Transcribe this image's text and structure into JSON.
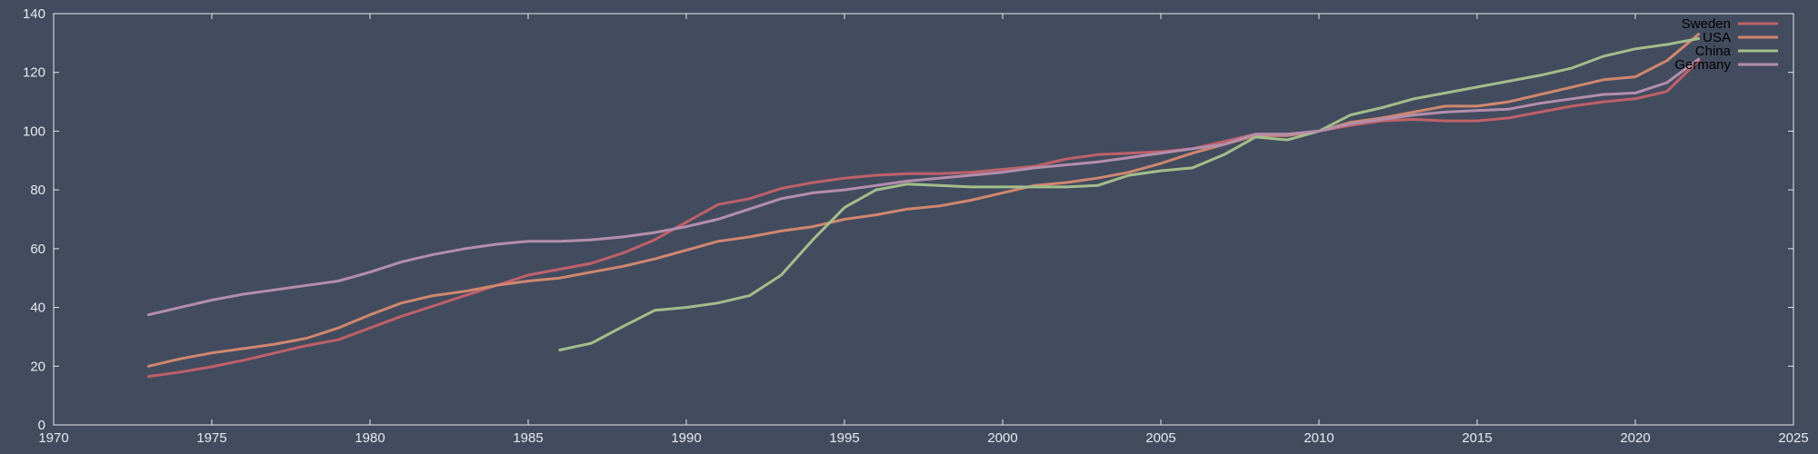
{
  "chart_data": {
    "type": "line",
    "title": "",
    "xlabel": "",
    "ylabel": "",
    "xlim": [
      1970,
      2025
    ],
    "ylim": [
      0,
      140
    ],
    "xticks": [
      1970,
      1975,
      1980,
      1985,
      1990,
      1995,
      2000,
      2005,
      2010,
      2015,
      2020,
      2025
    ],
    "yticks": [
      0,
      20,
      40,
      60,
      80,
      100,
      120,
      140
    ],
    "grid": false,
    "legend": "top-right",
    "series": [
      {
        "name": "Sweden",
        "color": "#bf616a",
        "x": [
          1973,
          1974,
          1975,
          1976,
          1977,
          1978,
          1979,
          1980,
          1981,
          1982,
          1983,
          1984,
          1985,
          1986,
          1987,
          1988,
          1989,
          1990,
          1991,
          1992,
          1993,
          1994,
          1995,
          1996,
          1997,
          1998,
          1999,
          2000,
          2001,
          2002,
          2003,
          2004,
          2005,
          2006,
          2007,
          2008,
          2009,
          2010,
          2011,
          2012,
          2013,
          2014,
          2015,
          2016,
          2017,
          2018,
          2019,
          2020,
          2021,
          2022
        ],
        "y": [
          16.5,
          18,
          19.8,
          22,
          24.5,
          27,
          29,
          33,
          37,
          40.5,
          44,
          47.5,
          51,
          53,
          55,
          58.5,
          63,
          69,
          75,
          77,
          80.5,
          82.5,
          84,
          85,
          85.5,
          85.5,
          86,
          87,
          88,
          90.5,
          92,
          92.5,
          93,
          94,
          96.5,
          99,
          99,
          100,
          102,
          103.5,
          104,
          103.5,
          103.5,
          104.5,
          106.5,
          108.5,
          110,
          111,
          113.5,
          124
        ]
      },
      {
        "name": "USA",
        "color": "#d08770",
        "x": [
          1973,
          1974,
          1975,
          1976,
          1977,
          1978,
          1979,
          1980,
          1981,
          1982,
          1983,
          1984,
          1985,
          1986,
          1987,
          1988,
          1989,
          1990,
          1991,
          1992,
          1993,
          1994,
          1995,
          1996,
          1997,
          1998,
          1999,
          2000,
          2001,
          2002,
          2003,
          2004,
          2005,
          2006,
          2007,
          2008,
          2009,
          2010,
          2011,
          2012,
          2013,
          2014,
          2015,
          2016,
          2017,
          2018,
          2019,
          2020,
          2021,
          2022
        ],
        "y": [
          20,
          22.5,
          24.5,
          26,
          27.5,
          29.5,
          33,
          37.5,
          41.5,
          44,
          45.5,
          47.5,
          49,
          50,
          52,
          54,
          56.5,
          59.5,
          62.5,
          64,
          66,
          67.5,
          70,
          71.5,
          73.5,
          74.5,
          76.5,
          79,
          81.5,
          82.5,
          84,
          86,
          89,
          92.5,
          95.5,
          98.5,
          98.5,
          100,
          103,
          104.5,
          106.5,
          108.5,
          108.5,
          110,
          112.5,
          115,
          117.5,
          118.5,
          124,
          133
        ]
      },
      {
        "name": "China",
        "color": "#a3be8c",
        "x": [
          1986,
          1987,
          1988,
          1989,
          1990,
          1991,
          1992,
          1993,
          1994,
          1995,
          1996,
          1997,
          1998,
          1999,
          2000,
          2001,
          2002,
          2003,
          2004,
          2005,
          2006,
          2007,
          2008,
          2009,
          2010,
          2011,
          2012,
          2013,
          2014,
          2015,
          2016,
          2017,
          2018,
          2019,
          2020,
          2021,
          2022
        ],
        "y": [
          25.5,
          27.8,
          33.5,
          39,
          40,
          41.5,
          44,
          51,
          63,
          74,
          80,
          82,
          81.5,
          81,
          81,
          81,
          81,
          81.5,
          85,
          86.5,
          87.5,
          92,
          98,
          97,
          100,
          105.5,
          108,
          111,
          113,
          115,
          117,
          119,
          121.5,
          125.5,
          128,
          129.5,
          131.5
        ]
      },
      {
        "name": "Germany",
        "color": "#b48ead",
        "x": [
          1973,
          1974,
          1975,
          1976,
          1977,
          1978,
          1979,
          1980,
          1981,
          1982,
          1983,
          1984,
          1985,
          1986,
          1987,
          1988,
          1989,
          1990,
          1991,
          1992,
          1993,
          1994,
          1995,
          1996,
          1997,
          1998,
          1999,
          2000,
          2001,
          2002,
          2003,
          2004,
          2005,
          2006,
          2007,
          2008,
          2009,
          2010,
          2011,
          2012,
          2013,
          2014,
          2015,
          2016,
          2017,
          2018,
          2019,
          2020,
          2021,
          2022
        ],
        "y": [
          37.5,
          40,
          42.5,
          44.5,
          46,
          47.5,
          49,
          52,
          55.5,
          58,
          60,
          61.5,
          62.5,
          62.5,
          63,
          64,
          65.5,
          67.5,
          70,
          73.5,
          77,
          79,
          80,
          81.5,
          83,
          84,
          85,
          86,
          87.5,
          88.5,
          89.5,
          91,
          92.5,
          94,
          95.5,
          99,
          99,
          100,
          102.5,
          104,
          105.5,
          106.5,
          107,
          107.5,
          109.5,
          111,
          112.5,
          113,
          116.5,
          124.5
        ]
      }
    ]
  }
}
